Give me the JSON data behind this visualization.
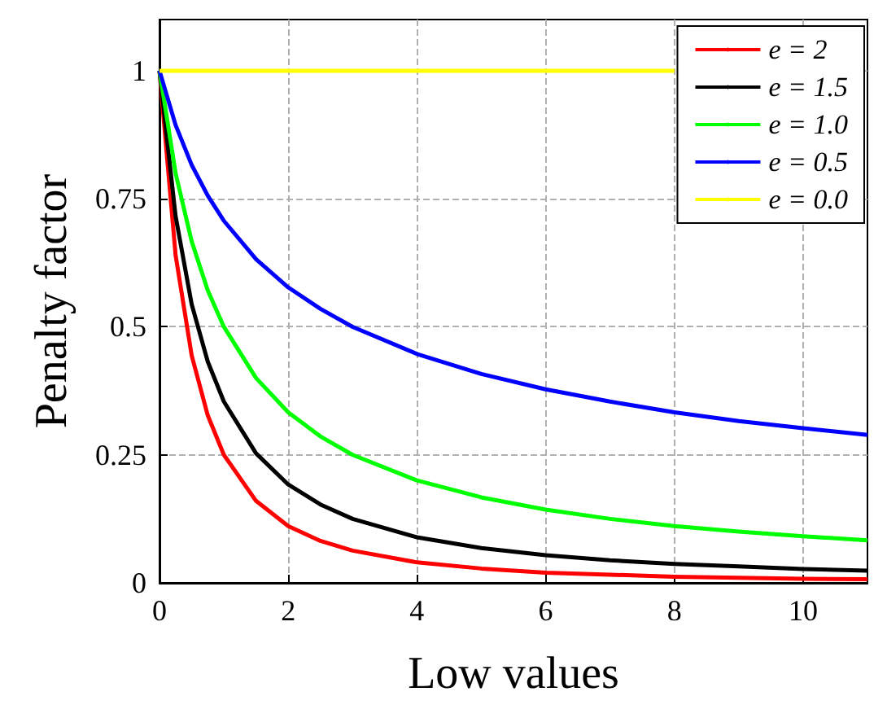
{
  "chart_data": {
    "type": "line",
    "xlabel": "Low values",
    "ylabel": "Penalty factor",
    "x": [
      0,
      0.25,
      0.5,
      0.75,
      1,
      1.5,
      2,
      2.5,
      3,
      4,
      5,
      6,
      7,
      8,
      9,
      10,
      11
    ],
    "series": [
      {
        "name": "e = 2",
        "color": "#ff0000",
        "values": [
          1,
          0.64,
          0.444,
          0.327,
          0.25,
          0.16,
          0.111,
          0.082,
          0.063,
          0.04,
          0.028,
          0.02,
          0.016,
          0.012,
          0.01,
          0.008,
          0.007
        ]
      },
      {
        "name": "e = 1.5",
        "color": "#000000",
        "values": [
          1,
          0.716,
          0.544,
          0.432,
          0.354,
          0.253,
          0.192,
          0.153,
          0.125,
          0.089,
          0.068,
          0.054,
          0.044,
          0.037,
          0.032,
          0.027,
          0.024
        ]
      },
      {
        "name": "e = 1.0",
        "color": "#00ff00",
        "values": [
          1,
          0.8,
          0.667,
          0.571,
          0.5,
          0.4,
          0.333,
          0.286,
          0.25,
          0.2,
          0.167,
          0.143,
          0.125,
          0.111,
          0.1,
          0.091,
          0.083
        ]
      },
      {
        "name": "e = 0.5",
        "color": "#0000ff",
        "values": [
          1,
          0.894,
          0.816,
          0.756,
          0.707,
          0.632,
          0.577,
          0.535,
          0.5,
          0.447,
          0.408,
          0.378,
          0.354,
          0.333,
          0.316,
          0.302,
          0.289
        ]
      },
      {
        "name": "e = 0.0",
        "color": "#ffff00",
        "values": [
          1,
          1,
          1,
          1,
          1,
          1,
          1,
          1,
          1,
          1,
          1,
          1,
          1,
          1,
          null,
          null,
          null
        ]
      }
    ],
    "xlim": [
      0,
      11
    ],
    "xticks": [
      0,
      2,
      4,
      6,
      8,
      10
    ],
    "ylim": [
      0,
      1.1
    ],
    "yticks": [
      0,
      0.25,
      0.5,
      0.75,
      1
    ],
    "grid": true,
    "legend": "top right",
    "marker": "none",
    "line_style": "solid"
  }
}
